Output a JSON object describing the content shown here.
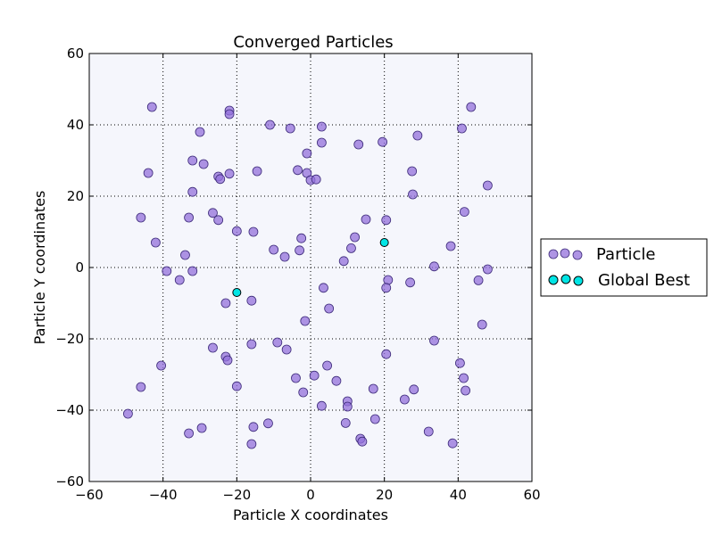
{
  "chart_data": {
    "type": "scatter",
    "title": "Converged Particles",
    "xlabel": "Particle X coordinates",
    "ylabel": "Particle Y coordinates",
    "xlim": [
      -60,
      60
    ],
    "ylim": [
      -60,
      60
    ],
    "xticks": [
      -60,
      -40,
      -20,
      0,
      20,
      40,
      60
    ],
    "yticks": [
      -60,
      -40,
      -20,
      0,
      20,
      40,
      60
    ],
    "grid": true,
    "legend_position": "outside-right",
    "plot_background": "#f5f6fc",
    "series": [
      {
        "name": "Particle",
        "color": "#9370db",
        "edge_color": "#3d2b7a",
        "points": [
          [
            -43,
            45
          ],
          [
            -22,
            44
          ],
          [
            -22,
            43
          ],
          [
            -30,
            38
          ],
          [
            -11,
            40
          ],
          [
            -5.5,
            39
          ],
          [
            3,
            39.5
          ],
          [
            3,
            35
          ],
          [
            -1,
            32
          ],
          [
            13,
            34.5
          ],
          [
            19.5,
            35.2
          ],
          [
            29,
            37
          ],
          [
            41,
            39
          ],
          [
            43.5,
            45
          ],
          [
            -44,
            26.5
          ],
          [
            -32,
            30
          ],
          [
            -29,
            29
          ],
          [
            -25,
            25.5
          ],
          [
            -24.5,
            24.8
          ],
          [
            -22,
            26.3
          ],
          [
            -14.5,
            27
          ],
          [
            -3.5,
            27.3
          ],
          [
            -1,
            26.5
          ],
          [
            0,
            24.5
          ],
          [
            1.5,
            24.7
          ],
          [
            27.5,
            27
          ],
          [
            27.7,
            20.5
          ],
          [
            48,
            23
          ],
          [
            -32,
            21.2
          ],
          [
            -26.5,
            15.3
          ],
          [
            -25,
            13.3
          ],
          [
            -33,
            14
          ],
          [
            -46,
            14
          ],
          [
            -42,
            7
          ],
          [
            -20,
            10.2
          ],
          [
            -15.5,
            10
          ],
          [
            15,
            13.5
          ],
          [
            20.5,
            13.3
          ],
          [
            41.7,
            15.6
          ],
          [
            12,
            8.5
          ],
          [
            -2.5,
            8.2
          ],
          [
            11,
            5.4
          ],
          [
            38,
            6
          ],
          [
            -34,
            3.5
          ],
          [
            -10,
            5
          ],
          [
            -7,
            3
          ],
          [
            -3,
            4.8
          ],
          [
            9,
            1.8
          ],
          [
            33.5,
            0.3
          ],
          [
            48,
            -0.5
          ],
          [
            -39,
            -1
          ],
          [
            -32,
            -1
          ],
          [
            -35.5,
            -3.5
          ],
          [
            21,
            -3.5
          ],
          [
            20.5,
            -5.7
          ],
          [
            27,
            -4.2
          ],
          [
            45.5,
            -3.6
          ],
          [
            3.5,
            -5.7
          ],
          [
            -23,
            -10
          ],
          [
            -16,
            -9.3
          ],
          [
            5,
            -11.5
          ],
          [
            -1.5,
            -15
          ],
          [
            46.5,
            -16
          ],
          [
            -26.5,
            -22.5
          ],
          [
            -16,
            -21.5
          ],
          [
            -9,
            -21
          ],
          [
            -6.5,
            -23
          ],
          [
            33.5,
            -20.5
          ],
          [
            -23,
            -25
          ],
          [
            -22.5,
            -26
          ],
          [
            -40.5,
            -27.5
          ],
          [
            4.5,
            -27.5
          ],
          [
            20.5,
            -24.3
          ],
          [
            40.5,
            -26.8
          ],
          [
            -4,
            -31
          ],
          [
            1,
            -30.3
          ],
          [
            7,
            -31.8
          ],
          [
            41.5,
            -31
          ],
          [
            -46,
            -33.5
          ],
          [
            -20,
            -33.3
          ],
          [
            -2,
            -35
          ],
          [
            17,
            -34
          ],
          [
            28,
            -34.2
          ],
          [
            42,
            -34.5
          ],
          [
            10,
            -37.5
          ],
          [
            10,
            -39
          ],
          [
            25.5,
            -37
          ],
          [
            3,
            -38.8
          ],
          [
            -49.5,
            -41
          ],
          [
            9.5,
            -43.6
          ],
          [
            17.5,
            -42.5
          ],
          [
            -11.5,
            -43.7
          ],
          [
            -15.5,
            -44.7
          ],
          [
            -29.5,
            -45
          ],
          [
            -33,
            -46.5
          ],
          [
            32,
            -46
          ],
          [
            13.5,
            -48
          ],
          [
            14,
            -48.8
          ],
          [
            -16,
            -49.5
          ],
          [
            38.5,
            -49.3
          ]
        ]
      },
      {
        "name": "Global Best",
        "color": "#00e5e5",
        "edge_color": "#000000",
        "points": [
          [
            -20,
            -7
          ],
          [
            20,
            7
          ]
        ]
      }
    ]
  }
}
